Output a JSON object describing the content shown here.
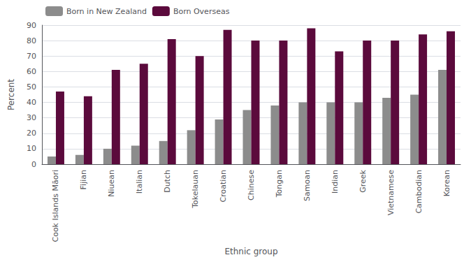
{
  "chart_data": {
    "type": "bar",
    "categories": [
      "Cook Islands Māori",
      "Fijian",
      "Niuean",
      "Italian",
      "Dutch",
      "Tokelauan",
      "Croatian",
      "Chinese",
      "Tongan",
      "Samoan",
      "Indian",
      "Greek",
      "Vietnamese",
      "Cambodian",
      "Korean"
    ],
    "series": [
      {
        "name": "Born in New Zealand",
        "color": "#8C8C8C",
        "values": [
          5,
          6,
          10,
          12,
          15,
          22,
          29,
          35,
          38,
          40,
          40,
          40,
          43,
          45,
          61
        ]
      },
      {
        "name": "Born Overseas",
        "color": "#5B0A3C",
        "values": [
          47,
          44,
          61,
          65,
          81,
          70,
          87,
          80,
          80,
          88,
          73,
          80,
          80,
          84,
          86
        ]
      }
    ],
    "xlabel": "Ethnic group",
    "ylabel": "Percent",
    "ylim": [
      0,
      90
    ],
    "yticks": [
      0,
      10,
      20,
      30,
      40,
      50,
      60,
      70,
      80,
      90
    ],
    "grid": true,
    "legend": "upper left"
  }
}
